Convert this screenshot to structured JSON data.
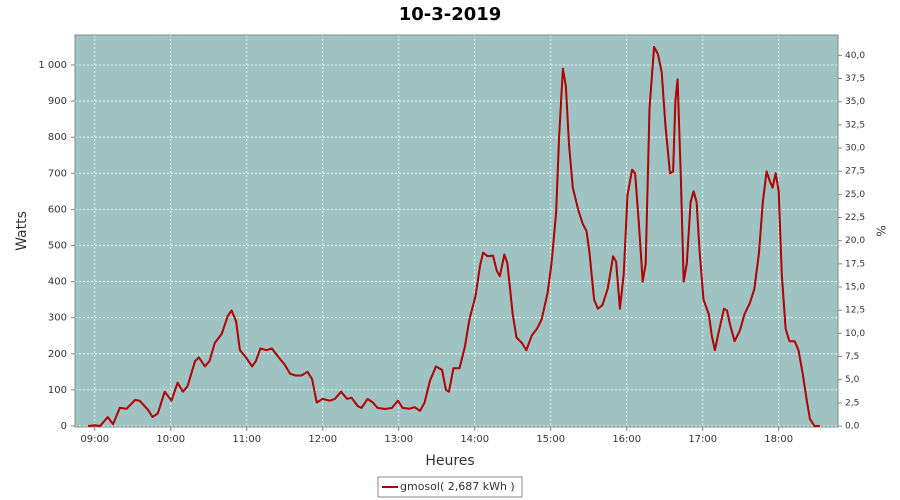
{
  "chart_data": {
    "type": "line",
    "title": "10-3-2019",
    "x_label": "Heures",
    "y_label": "Watts",
    "y2_label": "%",
    "x": [
      8.91,
      9.0,
      9.07,
      9.17,
      9.24,
      9.33,
      9.42,
      9.53,
      9.59,
      9.7,
      9.76,
      9.83,
      9.92,
      10.01,
      10.09,
      10.16,
      10.22,
      10.32,
      10.37,
      10.45,
      10.51,
      10.58,
      10.67,
      10.75,
      10.8,
      10.86,
      10.91,
      10.99,
      11.07,
      11.12,
      11.18,
      11.26,
      11.33,
      11.42,
      11.5,
      11.57,
      11.64,
      11.72,
      11.8,
      11.86,
      11.92,
      12.0,
      12.09,
      12.16,
      12.24,
      12.32,
      12.38,
      12.46,
      12.51,
      12.59,
      12.66,
      12.72,
      12.82,
      12.91,
      12.99,
      13.05,
      13.14,
      13.21,
      13.28,
      13.34,
      13.41,
      13.49,
      13.57,
      13.62,
      13.66,
      13.72,
      13.8,
      13.87,
      13.93,
      14.01,
      14.07,
      14.11,
      14.17,
      14.24,
      14.29,
      14.33,
      14.39,
      14.43,
      14.5,
      14.55,
      14.62,
      14.68,
      14.75,
      14.82,
      14.88,
      14.96,
      15.01,
      15.07,
      15.11,
      15.16,
      15.2,
      15.24,
      15.29,
      15.36,
      15.42,
      15.47,
      15.51,
      15.57,
      15.62,
      15.68,
      15.75,
      15.82,
      15.86,
      15.91,
      15.96,
      16.01,
      16.07,
      16.11,
      16.16,
      16.21,
      16.25,
      16.3,
      16.36,
      16.41,
      16.46,
      16.51,
      16.57,
      16.61,
      16.64,
      16.67,
      16.71,
      16.75,
      16.79,
      16.84,
      16.88,
      16.92,
      16.96,
      17.01,
      17.08,
      17.12,
      17.16,
      17.21,
      17.28,
      17.32,
      17.36,
      17.42,
      17.49,
      17.55,
      17.62,
      17.68,
      17.74,
      17.79,
      17.84,
      17.88,
      17.92,
      17.96,
      18.0,
      18.04,
      18.09,
      18.14,
      18.21,
      18.26,
      18.32,
      18.37,
      18.41,
      18.47,
      18.54
    ],
    "series": [
      {
        "name": "gmosol( 2,687 kWh )",
        "color": "#b00000",
        "values": [
          0,
          2,
          0,
          25,
          5,
          50,
          48,
          72,
          70,
          45,
          25,
          35,
          95,
          70,
          120,
          95,
          110,
          180,
          190,
          165,
          180,
          230,
          255,
          305,
          320,
          290,
          210,
          190,
          165,
          180,
          215,
          210,
          215,
          190,
          170,
          145,
          140,
          140,
          150,
          130,
          65,
          75,
          70,
          75,
          95,
          75,
          78,
          55,
          50,
          75,
          65,
          50,
          47,
          50,
          70,
          50,
          48,
          52,
          42,
          65,
          125,
          165,
          155,
          100,
          95,
          160,
          160,
          220,
          295,
          360,
          445,
          480,
          470,
          472,
          430,
          415,
          475,
          450,
          310,
          245,
          230,
          210,
          250,
          270,
          295,
          370,
          450,
          590,
          800,
          990,
          940,
          780,
          660,
          600,
          560,
          540,
          480,
          350,
          325,
          335,
          380,
          470,
          455,
          325,
          420,
          640,
          710,
          700,
          560,
          400,
          450,
          880,
          1050,
          1030,
          980,
          830,
          700,
          705,
          900,
          960,
          700,
          400,
          450,
          620,
          650,
          620,
          480,
          350,
          310,
          250,
          210,
          260,
          325,
          320,
          280,
          235,
          265,
          310,
          340,
          380,
          480,
          620,
          705,
          680,
          660,
          700,
          650,
          420,
          270,
          235,
          235,
          210,
          140,
          70,
          20,
          0,
          0
        ]
      }
    ],
    "xlim": [
      8.74,
      18.78
    ],
    "xticks": [
      {
        "value": 9,
        "label": "09:00"
      },
      {
        "value": 10,
        "label": "10:00"
      },
      {
        "value": 11,
        "label": "11:00"
      },
      {
        "value": 12,
        "label": "12:00"
      },
      {
        "value": 13,
        "label": "13:00"
      },
      {
        "value": 14,
        "label": "14:00"
      },
      {
        "value": 15,
        "label": "15:00"
      },
      {
        "value": 16,
        "label": "16:00"
      },
      {
        "value": 17,
        "label": "17:00"
      },
      {
        "value": 18,
        "label": "18:00"
      }
    ],
    "ylim": [
      0,
      1083
    ],
    "yticks": [
      0,
      100,
      200,
      300,
      400,
      500,
      600,
      700,
      800,
      900,
      {
        "value": 1000,
        "label": "1 000"
      }
    ],
    "y2lim": [
      0,
      42.2
    ],
    "y2ticks": [
      {
        "value": 0,
        "label": "0,0"
      },
      {
        "value": 2.5,
        "label": "2,5"
      },
      {
        "value": 5,
        "label": "5,0"
      },
      {
        "value": 7.5,
        "label": "7,5"
      },
      {
        "value": 10,
        "label": "10,0"
      },
      {
        "value": 12.5,
        "label": "12,5"
      },
      {
        "value": 15,
        "label": "15,0"
      },
      {
        "value": 17.5,
        "label": "17,5"
      },
      {
        "value": 20,
        "label": "20,0"
      },
      {
        "value": 22.5,
        "label": "22,5"
      },
      {
        "value": 25,
        "label": "25,0"
      },
      {
        "value": 27.5,
        "label": "27,5"
      },
      {
        "value": 30,
        "label": "30,0"
      },
      {
        "value": 32.5,
        "label": "32,5"
      },
      {
        "value": 35,
        "label": "35,0"
      },
      {
        "value": 37.5,
        "label": "37,5"
      },
      {
        "value": 40,
        "label": "40,0"
      }
    ],
    "grid": true,
    "background": "#9fc3c3",
    "legend": "bottom"
  }
}
